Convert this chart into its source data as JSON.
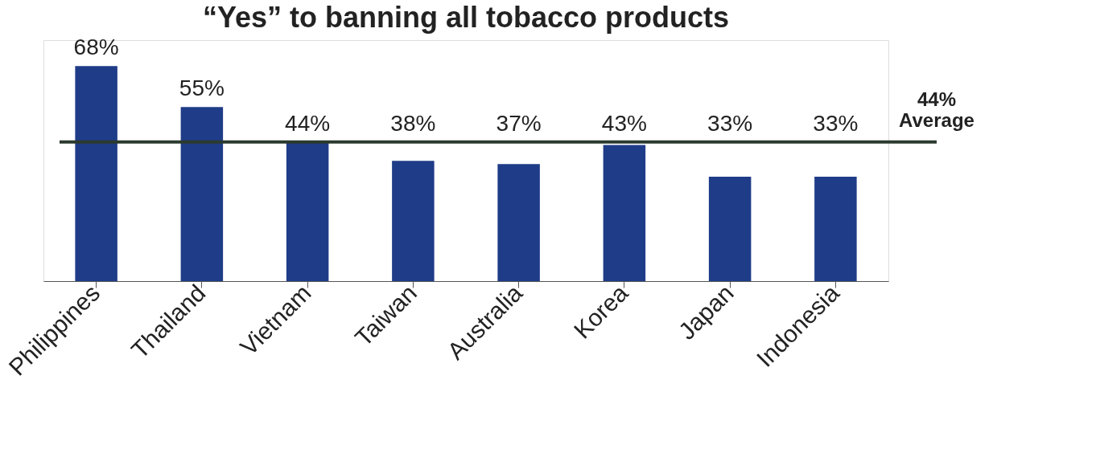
{
  "chart_data": {
    "type": "bar",
    "title": "“Yes” to banning all tobacco products",
    "categories": [
      "Philippines",
      "Thailand",
      "Vietnam",
      "Taiwan",
      "Australia",
      "Korea",
      "Japan",
      "Indonesia"
    ],
    "values": [
      68,
      55,
      44,
      38,
      37,
      43,
      33,
      33
    ],
    "value_labels": [
      "68%",
      "55%",
      "44%",
      "38%",
      "37%",
      "43%",
      "33%",
      "33%"
    ],
    "color": "#1f3c88",
    "ref_lines": [
      {
        "axis": "y",
        "value": 44,
        "label": "44% Average",
        "color": "#2b3a2e",
        "line_style": "solid"
      }
    ],
    "grid": false
  }
}
